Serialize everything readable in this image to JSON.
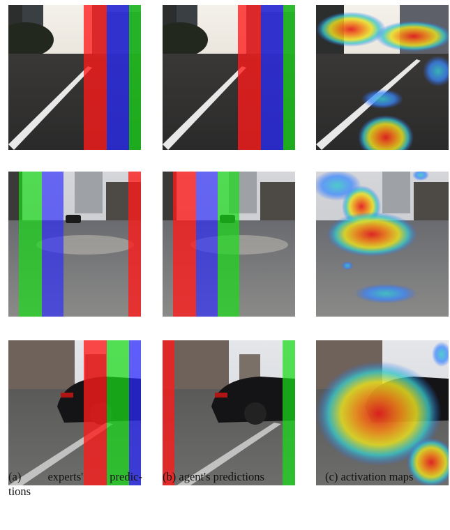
{
  "captions": {
    "a_label": "(a)",
    "a_word1": "experts'",
    "a_word2": "predic-",
    "a_line2": "tions",
    "b": "(b) agent's predictions",
    "c": "(c) activation maps"
  },
  "overlay_colors": {
    "red": "#ff1a1a",
    "green": "#1adc1a",
    "blue": "#2a2aff"
  },
  "rows": [
    {
      "scene": "street-crosswalk",
      "experts": [
        "red",
        "blue",
        "green"
      ],
      "agent": [
        "red",
        "blue",
        "green"
      ]
    },
    {
      "scene": "plaza-street",
      "experts": [
        "green",
        "blue",
        "red"
      ],
      "agent": [
        "red",
        "blue",
        "green"
      ]
    },
    {
      "scene": "car-street",
      "experts": [
        "red",
        "green",
        "blue"
      ],
      "agent": [
        "red",
        "green"
      ]
    }
  ]
}
